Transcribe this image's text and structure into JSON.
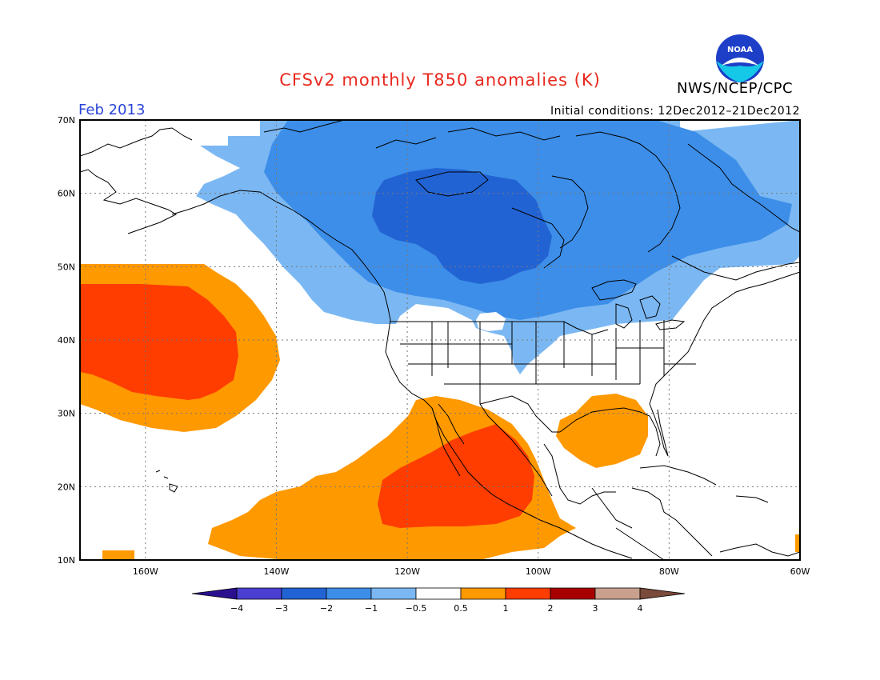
{
  "header": {
    "title": "CFSv2 monthly T850 anomalies (K)",
    "agency": "NWS/NCEP/CPC",
    "logo_text": "NOAA",
    "month": "Feb 2013",
    "initial_conditions": "Initial conditions: 12Dec2012–21Dec2012"
  },
  "map": {
    "lon_range": [
      -170,
      -60
    ],
    "lat_range": [
      10,
      70
    ],
    "lat_labels": [
      "70N",
      "60N",
      "50N",
      "40N",
      "30N",
      "20N",
      "10N"
    ],
    "lat_values": [
      70,
      60,
      50,
      40,
      30,
      20,
      10
    ],
    "lon_labels": [
      "160W",
      "140W",
      "120W",
      "100W",
      "80W",
      "60W"
    ],
    "lon_values": [
      -160,
      -140,
      -120,
      -100,
      -80,
      -60
    ]
  },
  "colorbar": {
    "labels": [
      "-4",
      "-3",
      "-2",
      "-1",
      "-0.5",
      "0.5",
      "1",
      "2",
      "3",
      "4"
    ],
    "colors": [
      "#2a0f8f",
      "#4a3fd0",
      "#2263d4",
      "#3d8ee8",
      "#7bb8f3",
      "#ffffff",
      "#ff9900",
      "#ff3d00",
      "#a80000",
      "#c9a08e",
      "#7a4a3a"
    ]
  }
}
